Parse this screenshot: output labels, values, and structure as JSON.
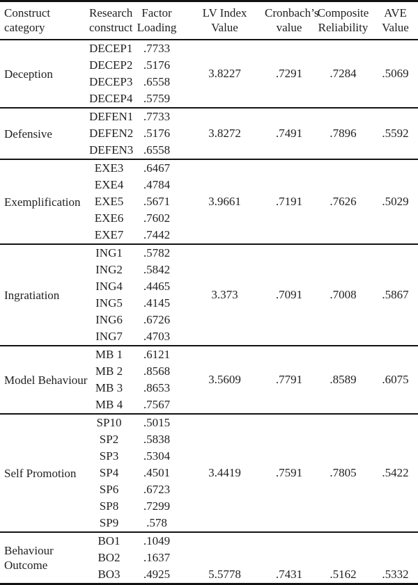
{
  "table": {
    "header": {
      "construct_category": "Construct\ncategory",
      "research_construct": "Research\nconstruct",
      "factor_loading": "Factor\nLoading",
      "lv_index": "LV Index\nValue",
      "cronbachs": "Cronbach’s\nvalue",
      "composite_reliability": "Composite\nReliability",
      "ave": "AVE\nValue"
    },
    "sections": [
      {
        "category": "Deception",
        "items": [
          {
            "construct": "DECEP1",
            "loading": ".7733"
          },
          {
            "construct": "DECEP2",
            "loading": ".5176"
          },
          {
            "construct": "DECEP3",
            "loading": ".6558"
          },
          {
            "construct": "DECEP4",
            "loading": ".5759"
          }
        ],
        "lv_index": "3.8227",
        "cronbachs": ".7291",
        "composite_reliability": ".7284",
        "ave": ".5069",
        "stats_align": "middle"
      },
      {
        "category": "Defensive",
        "items": [
          {
            "construct": "DEFEN1",
            "loading": ".7733"
          },
          {
            "construct": "DEFEN2",
            "loading": ".5176"
          },
          {
            "construct": "DEFEN3",
            "loading": ".6558"
          }
        ],
        "lv_index": "3.8272",
        "cronbachs": ".7491",
        "composite_reliability": ".7896",
        "ave": ".5592",
        "stats_align": "middle"
      },
      {
        "category": "Exemplification",
        "items": [
          {
            "construct": "EXE3",
            "loading": ".6467"
          },
          {
            "construct": "EXE4",
            "loading": ".4784"
          },
          {
            "construct": "EXE5",
            "loading": ".5671"
          },
          {
            "construct": "EXE6",
            "loading": ".7602"
          },
          {
            "construct": "EXE7",
            "loading": ".7442"
          }
        ],
        "lv_index": "3.9661",
        "cronbachs": ".7191",
        "composite_reliability": ".7626",
        "ave": ".5029",
        "stats_align": "middle"
      },
      {
        "category": "Ingratiation",
        "items": [
          {
            "construct": "ING1",
            "loading": ".5782"
          },
          {
            "construct": "ING2",
            "loading": ".5842"
          },
          {
            "construct": "ING4",
            "loading": ".4465"
          },
          {
            "construct": "ING5",
            "loading": ".4145"
          },
          {
            "construct": "ING6",
            "loading": ".6726"
          },
          {
            "construct": "ING7",
            "loading": ".4703"
          }
        ],
        "lv_index": "3.373",
        "cronbachs": ".7091",
        "composite_reliability": ".7008",
        "ave": ".5867",
        "stats_align": "middle"
      },
      {
        "category": "Model Behaviour",
        "items": [
          {
            "construct": "MB 1",
            "loading": ".6121"
          },
          {
            "construct": "MB 2",
            "loading": ".8568"
          },
          {
            "construct": "MB 3",
            "loading": ".8653"
          },
          {
            "construct": "MB 4",
            "loading": ".7567"
          }
        ],
        "lv_index": "3.5609",
        "cronbachs": ".7791",
        "composite_reliability": ".8589",
        "ave": ".6075",
        "stats_align": "middle"
      },
      {
        "category": "Self Promotion",
        "items": [
          {
            "construct": "SP10",
            "loading": ".5015"
          },
          {
            "construct": "SP2",
            "loading": ".5838"
          },
          {
            "construct": "SP3",
            "loading": ".5304"
          },
          {
            "construct": "SP4",
            "loading": ".4501"
          },
          {
            "construct": "SP6",
            "loading": ".6723"
          },
          {
            "construct": "SP8",
            "loading": ".7299"
          },
          {
            "construct": "SP9",
            "loading": ".578"
          }
        ],
        "lv_index": "3.4419",
        "cronbachs": ".7591",
        "composite_reliability": ".7805",
        "ave": ".5422",
        "stats_align": "middle"
      },
      {
        "category": "Behaviour Outcome",
        "items": [
          {
            "construct": "BO1",
            "loading": ".1049"
          },
          {
            "construct": "BO2",
            "loading": ".1637"
          },
          {
            "construct": "BO3",
            "loading": ".4925"
          }
        ],
        "lv_index": "5.5778",
        "cronbachs": ".7431",
        "composite_reliability": ".5162",
        "ave": ".5332",
        "stats_align": "bottom"
      }
    ]
  }
}
